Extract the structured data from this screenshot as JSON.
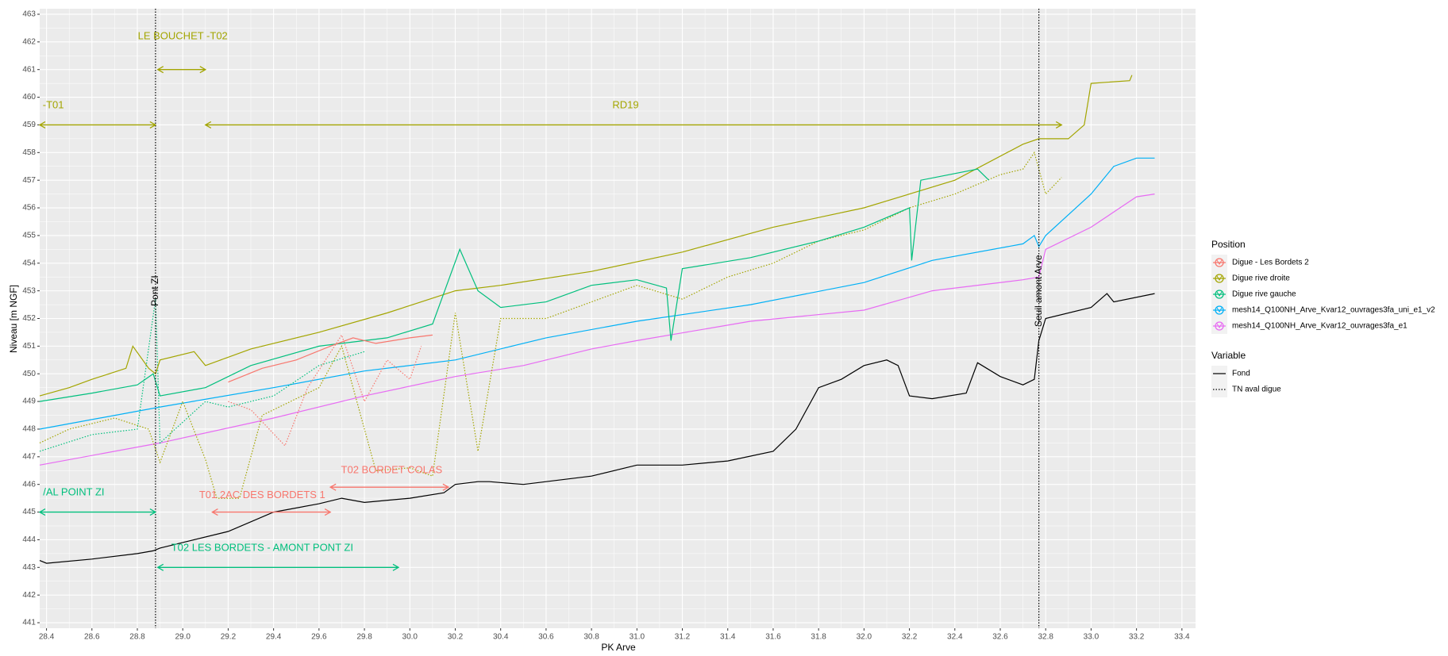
{
  "chart_data": {
    "type": "line",
    "xlabel": "PK Arve",
    "ylabel": "Niveau [m NGF]",
    "xlim": [
      28.37,
      33.46
    ],
    "ylim": [
      440.8,
      463.2
    ],
    "xticks": [
      28.4,
      28.6,
      28.8,
      {
        "value": 29,
        "label": "29.0"
      },
      29.2,
      29.4,
      29.6,
      29.8,
      {
        "value": 30,
        "label": "30.0"
      },
      30.2,
      30.4,
      30.6,
      30.8,
      {
        "value": 31,
        "label": "31.0"
      },
      31.2,
      31.4,
      31.6,
      31.8,
      {
        "value": 32,
        "label": "32.0"
      },
      32.2,
      32.4,
      32.6,
      32.8,
      {
        "value": 33,
        "label": "33.0"
      },
      33.2,
      33.4
    ],
    "yticks": [
      441,
      442,
      443,
      444,
      445,
      446,
      447,
      448,
      449,
      450,
      451,
      452,
      453,
      454,
      455,
      456,
      457,
      458,
      459,
      460,
      461,
      462,
      463
    ],
    "grid": true,
    "legend": {
      "position": "right",
      "groups": [
        {
          "title": "Position",
          "entries": [
            {
              "name": "Digue - Les Bordets 2",
              "color": "#F8766D"
            },
            {
              "name": "Digue rive droite",
              "color": "#A3A500"
            },
            {
              "name": "Digue rive gauche",
              "color": "#00BF7D"
            },
            {
              "name": "mesh14_Q100NH_Arve_Kvar12_ouvrages3fa_uni_e1_v2",
              "color": "#00B0F6"
            },
            {
              "name": "mesh14_Q100NH_Arve_Kvar12_ouvrages3fa_e1",
              "color": "#E76BF3"
            }
          ]
        },
        {
          "title": "Variable",
          "entries": [
            {
              "name": "Fond",
              "linetype": "solid"
            },
            {
              "name": "TN aval digue",
              "linetype": "dotted"
            }
          ]
        }
      ]
    },
    "series": [
      {
        "name": "mesh14_Q100NH_Arve_Kvar12_ouvrages3fa_e1",
        "color": "#E76BF3",
        "linetype": "solid",
        "x": [
          28.37,
          28.9,
          29.4,
          29.8,
          30.2,
          30.5,
          30.8,
          31.0,
          31.5,
          32.0,
          32.3,
          32.7,
          32.77,
          32.8,
          33.0,
          33.2,
          33.28
        ],
        "values": [
          446.7,
          447.5,
          448.4,
          449.2,
          449.9,
          450.3,
          450.9,
          451.2,
          451.9,
          452.3,
          453.0,
          453.4,
          453.5,
          454.5,
          455.3,
          456.4,
          456.5
        ]
      },
      {
        "name": "mesh14_Q100NH_Arve_Kvar12_ouvrages3fa_uni_e1_v2",
        "color": "#00B0F6",
        "linetype": "solid",
        "x": [
          28.37,
          28.9,
          29.4,
          29.8,
          30.2,
          30.6,
          31.0,
          31.5,
          32.0,
          32.3,
          32.7,
          32.75,
          32.77,
          32.8,
          33.0,
          33.1,
          33.2,
          33.28
        ],
        "values": [
          448.0,
          448.8,
          449.5,
          450.1,
          450.5,
          451.3,
          451.9,
          452.5,
          453.3,
          454.1,
          454.7,
          455.0,
          454.6,
          455.0,
          456.5,
          457.5,
          457.8,
          457.8
        ]
      },
      {
        "name": "Digue rive droite",
        "color": "#A3A500",
        "linetype": "dotted",
        "x": [
          28.37,
          28.5,
          28.7,
          28.85,
          28.9,
          29.0,
          29.1,
          29.15,
          29.25,
          29.35,
          29.6,
          29.7,
          29.8,
          29.85,
          30.0,
          30.1,
          30.2,
          30.3,
          30.4,
          30.6,
          30.8,
          31.0,
          31.2,
          31.4,
          31.6,
          31.8,
          32.0,
          32.2,
          32.4,
          32.6,
          32.7,
          32.75,
          32.8,
          32.87
        ],
        "values": [
          447.5,
          448.0,
          448.4,
          448.0,
          446.8,
          449.0,
          446.9,
          445.5,
          445.5,
          448.5,
          449.5,
          451.0,
          448.0,
          446.5,
          446.6,
          446.3,
          452.2,
          447.2,
          452.0,
          452.0,
          452.6,
          453.2,
          452.7,
          453.5,
          454.0,
          454.8,
          455.2,
          456.0,
          456.5,
          457.2,
          457.4,
          458.0,
          456.5,
          457.1
        ]
      },
      {
        "name": "Digue rive gauche",
        "color": "#00BF7D",
        "linetype": "dotted",
        "x": [
          28.37,
          28.6,
          28.8,
          28.88,
          28.9,
          29.1,
          29.2,
          29.4,
          29.6,
          29.8
        ],
        "values": [
          447.2,
          447.8,
          448.0,
          452.7,
          447.5,
          449.0,
          448.8,
          449.2,
          450.3,
          450.8
        ]
      },
      {
        "name": "Digue - Les Bordets 2",
        "color": "#F8766D",
        "linetype": "dotted",
        "x": [
          29.2,
          29.3,
          29.45,
          29.55,
          29.7,
          29.8,
          29.9,
          30.0,
          30.05
        ],
        "values": [
          449.0,
          448.7,
          447.4,
          449.5,
          451.4,
          449.0,
          450.5,
          449.8,
          451.0
        ]
      },
      {
        "name": "Digue rive droite",
        "color": "#A3A500",
        "linetype": "solid",
        "x": [
          28.37,
          28.5,
          28.6,
          28.75,
          28.78,
          28.85,
          28.88,
          28.9,
          29.05,
          29.1,
          29.3,
          29.6,
          29.9,
          30.2,
          30.4,
          30.8,
          31.2,
          31.6,
          32.0,
          32.4,
          32.7,
          32.77,
          32.9,
          32.97,
          33.0,
          33.17,
          33.18
        ],
        "values": [
          449.2,
          449.5,
          449.8,
          450.2,
          451.0,
          450.2,
          450.0,
          450.5,
          450.8,
          450.3,
          450.9,
          451.5,
          452.2,
          453.0,
          453.2,
          453.7,
          454.4,
          455.3,
          456.0,
          457.0,
          458.3,
          458.5,
          458.5,
          459.0,
          460.5,
          460.6,
          460.8
        ]
      },
      {
        "name": "Digue rive gauche",
        "color": "#00BF7D",
        "linetype": "solid",
        "x": [
          28.37,
          28.6,
          28.8,
          28.87,
          28.9,
          29.1,
          29.3,
          29.6,
          29.9,
          30.1,
          30.22,
          30.3,
          30.4,
          30.6,
          30.8,
          31.0,
          31.13,
          31.15,
          31.2,
          31.5,
          31.8,
          32.0,
          32.2,
          32.21,
          32.25,
          32.5,
          32.55
        ],
        "values": [
          449.0,
          449.3,
          449.6,
          450.0,
          449.2,
          449.5,
          450.3,
          451.0,
          451.3,
          451.8,
          454.5,
          453.0,
          452.4,
          452.6,
          453.2,
          453.4,
          453.1,
          451.2,
          453.8,
          454.2,
          454.8,
          455.3,
          456.0,
          454.1,
          457.0,
          457.4,
          457.0
        ]
      },
      {
        "name": "Digue - Les Bordets 2",
        "color": "#F8766D",
        "linetype": "solid",
        "x": [
          29.2,
          29.35,
          29.5,
          29.65,
          29.75,
          29.85,
          30.0,
          30.1
        ],
        "values": [
          449.7,
          450.2,
          450.5,
          451.0,
          451.3,
          451.1,
          451.3,
          451.4
        ]
      },
      {
        "name": "Fond",
        "color": "#000000",
        "linetype": "solid",
        "x": [
          28.37,
          28.4,
          28.6,
          28.8,
          28.87,
          28.9,
          29.0,
          29.2,
          29.4,
          29.6,
          29.7,
          29.8,
          30.0,
          30.15,
          30.2,
          30.3,
          30.35,
          30.5,
          30.8,
          31.0,
          31.2,
          31.4,
          31.6,
          31.7,
          31.8,
          31.9,
          32.0,
          32.1,
          32.15,
          32.2,
          32.3,
          32.45,
          32.5,
          32.6,
          32.7,
          32.75,
          32.77,
          32.8,
          33.0,
          33.07,
          33.1,
          33.28
        ],
        "values": [
          443.25,
          443.15,
          443.3,
          443.5,
          443.6,
          443.7,
          443.9,
          444.3,
          445.0,
          445.3,
          445.5,
          445.35,
          445.5,
          445.7,
          446.0,
          446.1,
          446.1,
          446.0,
          446.3,
          446.7,
          446.7,
          446.85,
          447.2,
          448.0,
          449.5,
          449.8,
          450.3,
          450.5,
          450.3,
          449.2,
          449.1,
          449.3,
          450.4,
          449.9,
          449.6,
          449.8,
          451.2,
          452.0,
          452.4,
          452.9,
          452.6,
          452.9
        ]
      }
    ],
    "vlines": [
      {
        "x": 28.88,
        "label": "Pont ZI",
        "y": 453
      },
      {
        "x": 32.77,
        "label": "Seuil amont Arve",
        "y": 453
      }
    ],
    "annotations": [
      {
        "text": "LE BOUCHET -T02",
        "x": 29.0,
        "y": 462.2,
        "color": "#A3A500"
      },
      {
        "text": "-T01",
        "x": 28.43,
        "y": 459.7,
        "color": "#A3A500"
      },
      {
        "text": "RD19",
        "x": 30.95,
        "y": 459.7,
        "color": "#A3A500"
      },
      {
        "text": "T02 BORDET COLAS",
        "x": 29.92,
        "y": 446.5,
        "color": "#F8766D"
      },
      {
        "text": "T01 2AC DES BORDETS 1",
        "x": 29.35,
        "y": 445.6,
        "color": "#F8766D"
      },
      {
        "text": "/AL POINT ZI",
        "x": 28.52,
        "y": 445.7,
        "color": "#00BF7D"
      },
      {
        "text": "T02 LES BORDETS - AMONT PONT ZI",
        "x": 29.35,
        "y": 443.7,
        "color": "#00BF7D"
      }
    ],
    "arrows": [
      {
        "x": [
          28.89,
          29.1
        ],
        "y": 461,
        "color": "#A3A500"
      },
      {
        "x": [
          28.37,
          28.88
        ],
        "y": 459,
        "color": "#A3A500"
      },
      {
        "x": [
          29.1,
          32.87
        ],
        "y": 459,
        "color": "#A3A500"
      },
      {
        "x": [
          29.65,
          30.17
        ],
        "y": 445.9,
        "color": "#F8766D"
      },
      {
        "x": [
          29.13,
          29.65
        ],
        "y": 445,
        "color": "#F8766D"
      },
      {
        "x": [
          28.37,
          28.88
        ],
        "y": 445,
        "color": "#00BF7D"
      },
      {
        "x": [
          28.89,
          29.95
        ],
        "y": 443,
        "color": "#00BF7D"
      }
    ]
  }
}
